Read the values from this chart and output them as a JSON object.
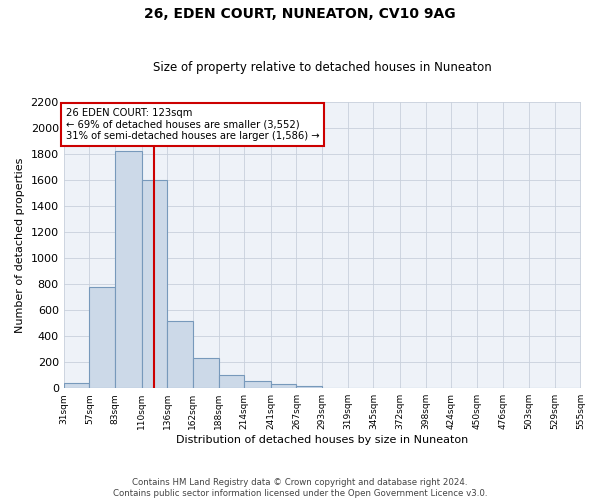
{
  "title": "26, EDEN COURT, NUNEATON, CV10 9AG",
  "subtitle": "Size of property relative to detached houses in Nuneaton",
  "xlabel": "Distribution of detached houses by size in Nuneaton",
  "ylabel": "Number of detached properties",
  "bin_edges": [
    31,
    57,
    83,
    110,
    136,
    162,
    188,
    214,
    241,
    267,
    293,
    319,
    345,
    372,
    398,
    424,
    450,
    476,
    503,
    529,
    555
  ],
  "counts": [
    40,
    780,
    1820,
    1600,
    515,
    230,
    105,
    55,
    30,
    15,
    5,
    0,
    0,
    0,
    0,
    0,
    0,
    0,
    0,
    0
  ],
  "bar_facecolor": "#ccd9e8",
  "bar_edgecolor": "#7799bb",
  "red_line_x": 123,
  "annotation_text": "26 EDEN COURT: 123sqm\n← 69% of detached houses are smaller (3,552)\n31% of semi-detached houses are larger (1,586) →",
  "annotation_box_edgecolor": "#cc0000",
  "annotation_box_facecolor": "white",
  "red_line_color": "#cc0000",
  "ylim": [
    0,
    2200
  ],
  "yticks": [
    0,
    200,
    400,
    600,
    800,
    1000,
    1200,
    1400,
    1600,
    1800,
    2000,
    2200
  ],
  "tick_labels": [
    "31sqm",
    "57sqm",
    "83sqm",
    "110sqm",
    "136sqm",
    "162sqm",
    "188sqm",
    "214sqm",
    "241sqm",
    "267sqm",
    "293sqm",
    "319sqm",
    "345sqm",
    "372sqm",
    "398sqm",
    "424sqm",
    "450sqm",
    "476sqm",
    "503sqm",
    "529sqm",
    "555sqm"
  ],
  "footnote": "Contains HM Land Registry data © Crown copyright and database right 2024.\nContains public sector information licensed under the Open Government Licence v3.0.",
  "bg_color": "#eef2f8",
  "grid_color": "#c8d0dc",
  "figsize": [
    6.0,
    5.0
  ],
  "dpi": 100
}
